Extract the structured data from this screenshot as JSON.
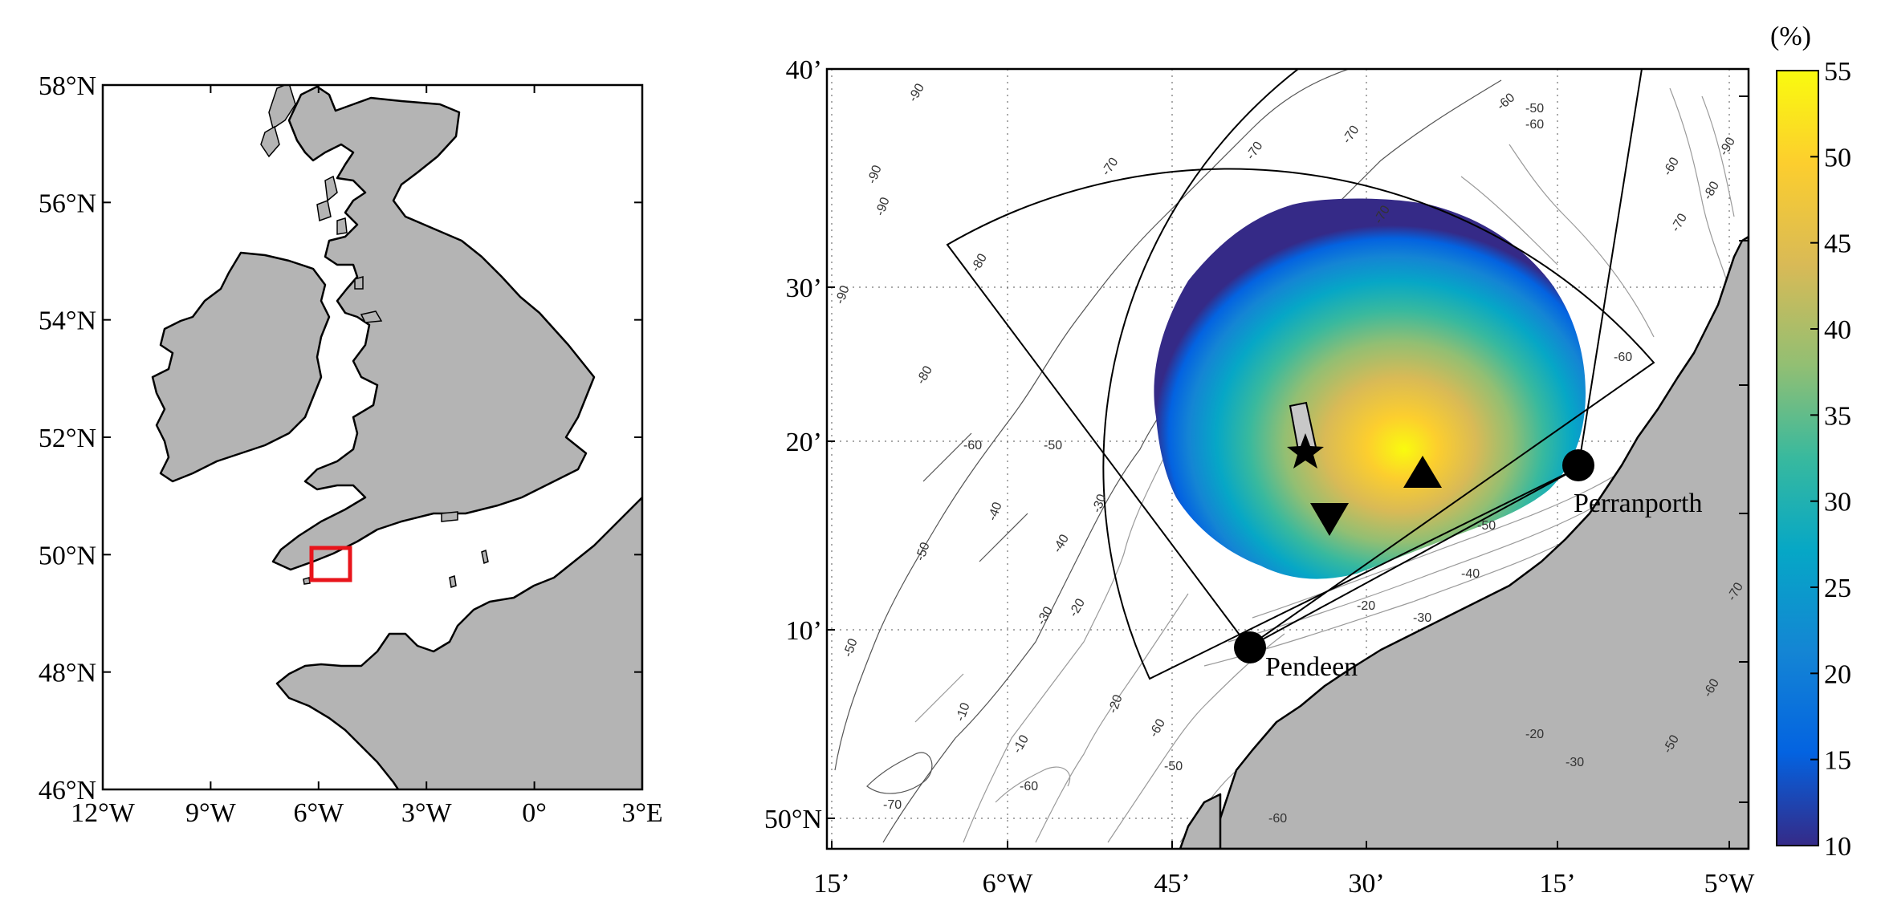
{
  "left_map": {
    "lat_ticks": [
      "58°N",
      "56°N",
      "54°N",
      "52°N",
      "50°N",
      "48°N",
      "46°N"
    ],
    "lon_ticks": [
      "12°W",
      "9°W",
      "6°W",
      "3°W",
      "0°",
      "3°E"
    ],
    "highlight_color": "#e8141b"
  },
  "right_map": {
    "lat_ticks": [
      "40’",
      "30’",
      "20’",
      "10’",
      "50°N"
    ],
    "lon_ticks": [
      "15’",
      "6°W",
      "45’",
      "30’",
      "15’",
      "5°W"
    ],
    "sites": [
      {
        "name": "Perranporth"
      },
      {
        "name": "Pendeen"
      }
    ],
    "markers": [
      "star-marker",
      "triangle-up-marker",
      "triangle-down-marker"
    ],
    "contour_labels": [
      "-90",
      "-90",
      "-90",
      "-90",
      "-80",
      "-80",
      "-70",
      "-70",
      "-70",
      "-70",
      "-60",
      "-60",
      "-60",
      "-50",
      "-50",
      "-50",
      "-40",
      "-40",
      "-30",
      "-30",
      "-20",
      "-20",
      "-10",
      "-10",
      "-60",
      "-50",
      "-60",
      "-70",
      "-80",
      "-90",
      "-60",
      "-70",
      "-50",
      "-40",
      "-30",
      "-20",
      "-70",
      "-60",
      "-50",
      "-60",
      "-20",
      "-30",
      "-50",
      "-60"
    ]
  },
  "colorbar": {
    "unit": "(%)",
    "ticks": [
      "55",
      "50",
      "45",
      "40",
      "35",
      "30",
      "25",
      "20",
      "15",
      "10"
    ],
    "min": 10,
    "max": 55,
    "colormap": "parula"
  }
}
